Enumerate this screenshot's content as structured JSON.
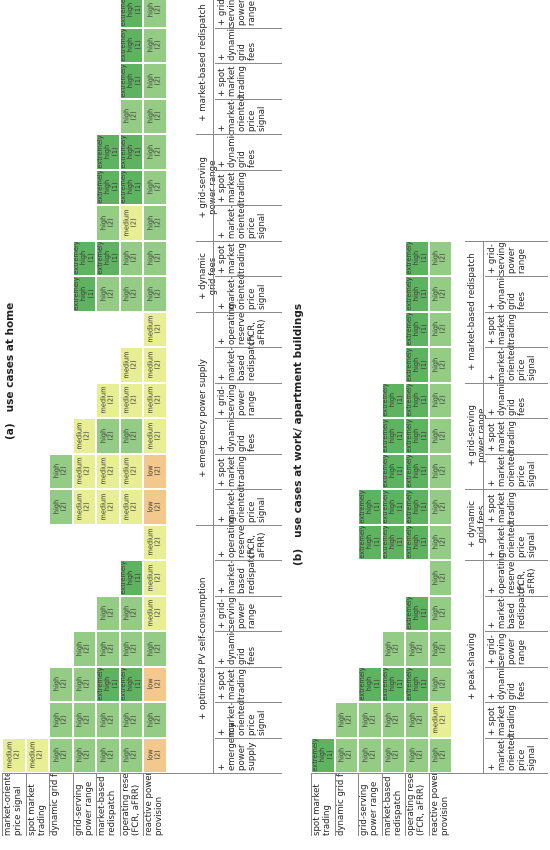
{
  "colors": {
    "extremely_high": "#5db35f",
    "high": "#94cc85",
    "medium": "#e7ee94",
    "low": "#f2c88c"
  },
  "panel_a": {
    "title": "(a)   use cases at home",
    "row_labels": [
      "market-oriented\nprice signal",
      "spot market\ntrading",
      "dynamic grid fees",
      "grid-serving\npower range",
      "market-based\nredispatch",
      "operating reserve\n(FCR, aFRR)",
      "reactive power\nprovision"
    ],
    "groups": [
      {
        "name": "+ optimized PV self-consumption",
        "columns": [
          {
            "label": "+ emergency\npower\nsupply",
            "cells": [
              "medium (2)",
              "medium (2)",
              "high (2)",
              "high (2)",
              "high (2)",
              "high (2)",
              "low (2)"
            ]
          },
          {
            "label": "+ market-\noriented\nprice signal",
            "cells": [
              "",
              "",
              "high (2)",
              "high (2)",
              "high (2)",
              "high (2)",
              "high (2)"
            ]
          },
          {
            "label": "+ spot market\ntrading",
            "cells": [
              "",
              "",
              "high (2)",
              "high (2)",
              "extremely high (1)",
              "extremely high (1)",
              "low (2)"
            ]
          },
          {
            "label": "+ dynamic\ngrid fees",
            "cells": [
              "",
              "",
              "",
              "high (2)",
              "high (2)",
              "high (2)",
              "high (2)"
            ]
          },
          {
            "label": "+ grid-serving\npower range",
            "cells": [
              "",
              "",
              "",
              "",
              "high (2)",
              "high (2)",
              "medium (2)"
            ]
          },
          {
            "label": "+ market-\nbased\nredispatch",
            "cells": [
              "",
              "",
              "",
              "",
              "",
              "extremely high (1)",
              "medium (2)"
            ]
          },
          {
            "label": "+ operating\nreserve\n(FCR, aFRR)",
            "cells": [
              "",
              "",
              "",
              "",
              "",
              "",
              "medium (2)"
            ]
          }
        ]
      },
      {
        "name": "+ emergency power supply",
        "columns": [
          {
            "label": "+ market-\noriented\nprice signal",
            "cells": [
              "",
              "",
              "high (2)",
              "medium (2)",
              "medium (2)",
              "medium (2)",
              "low (2)"
            ]
          },
          {
            "label": "+ spot market\ntrading",
            "cells": [
              "",
              "",
              "high (2)",
              "medium (2)",
              "medium (2)",
              "medium (2)",
              "low (2)"
            ]
          },
          {
            "label": "+ dynamic\ngrid fees",
            "cells": [
              "",
              "",
              "",
              "medium (2)",
              "high (2)",
              "high (2)",
              "medium (2)"
            ]
          },
          {
            "label": "+ grid-serving\npower range",
            "cells": [
              "",
              "",
              "",
              "",
              "medium (2)",
              "medium (2)",
              "medium (2)"
            ]
          },
          {
            "label": "+ market-\nbased\nredispatch",
            "cells": [
              "",
              "",
              "",
              "",
              "",
              "medium (2)",
              "medium (2)"
            ]
          },
          {
            "label": "+ operating\nreserve\n(FCR, aFRR)",
            "cells": [
              "",
              "",
              "",
              "",
              "",
              "",
              "medium (2)"
            ]
          }
        ]
      },
      {
        "name": "+ dynamic\ngrid fees",
        "columns": [
          {
            "label": "+ market-\noriented\nprice signal",
            "cells": [
              "",
              "",
              "",
              "extremely high (1)",
              "high (2)",
              "high (2)",
              "high (2)"
            ]
          },
          {
            "label": "+ spot market\ntrading",
            "cells": [
              "",
              "",
              "",
              "extremely high (1)",
              "extremely high (1)",
              "high (2)",
              "high (2)"
            ]
          }
        ]
      },
      {
        "name": "+ grid-serving\npower range",
        "columns": [
          {
            "label": "+ market-\noriented\nprice signal",
            "cells": [
              "",
              "",
              "",
              "",
              "high (2)",
              "medium (2)",
              "high (2)"
            ]
          },
          {
            "label": "+ spot market\ntrading",
            "cells": [
              "",
              "",
              "",
              "",
              "extremely high (1)",
              "extremely high (1)",
              "high (2)"
            ]
          },
          {
            "label": "+ dynamic\ngrid fees",
            "cells": [
              "",
              "",
              "",
              "",
              "extremely high (1)",
              "extremely high (1)",
              "high (2)"
            ]
          }
        ]
      },
      {
        "name": "+ market-based redispatch",
        "columns": [
          {
            "label": "+ market-\noriented\nprice signal",
            "cells": [
              "",
              "",
              "",
              "",
              "",
              "high (2)",
              "high (2)"
            ]
          },
          {
            "label": "+ spot market\ntrading",
            "cells": [
              "",
              "",
              "",
              "",
              "",
              "extremely high (1)",
              "high (2)"
            ]
          },
          {
            "label": "+ dynamic\ngrid fees",
            "cells": [
              "",
              "",
              "",
              "",
              "",
              "extremely high (1)",
              "high (2)"
            ]
          },
          {
            "label": "+ grid-serving\npower range",
            "cells": [
              "",
              "",
              "",
              "",
              "",
              "extremely high (1)",
              "high (2)"
            ]
          }
        ]
      }
    ]
  },
  "panel_b": {
    "title": "(b)   use cases at work/ apartment buildings",
    "row_labels": [
      "spot market\ntrading",
      "dynamic grid fees",
      "grid-serving\npower range",
      "market-based\nredispatch",
      "operating reserve\n(FCR, aFRR)",
      "reactive power\nprovision"
    ],
    "groups": [
      {
        "name": "+ peak shaving",
        "columns": [
          {
            "label": "+ market-\noriented\nprice signal",
            "cells": [
              "extremely high (1)",
              "high (2)",
              "high (2)",
              "high (2)",
              "high (2)",
              "high (2)"
            ]
          },
          {
            "label": "+ spot market\ntrading",
            "cells": [
              "",
              "high (2)",
              "high (2)",
              "high (2)",
              "high (2)",
              "medium (2)"
            ]
          },
          {
            "label": "+ dynamic\ngrid fees",
            "cells": [
              "",
              "",
              "extremely high (1)",
              "extremely high (1)",
              "extremely high (1)",
              "high (2)"
            ]
          },
          {
            "label": "+ grid-serving\npower range",
            "cells": [
              "",
              "",
              "",
              "high (2)",
              "high (2)",
              "high (2)"
            ]
          },
          {
            "label": "+ market-\nbased\nredispatch",
            "cells": [
              "",
              "",
              "",
              "",
              "extremely high (1)",
              "high (2)"
            ]
          },
          {
            "label": "+ operating\nreserve\n(FCR, aFRR)",
            "cells": [
              "",
              "",
              "",
              "",
              "",
              "high (2)"
            ]
          }
        ]
      },
      {
        "name": "+ dynamic\ngrid fees",
        "columns": [
          {
            "label": "+ market-\noriented\nprice signal",
            "cells": [
              "",
              "",
              "extremely high (1)",
              "extremely high (1)",
              "extremely high (1)",
              "high (2)"
            ]
          },
          {
            "label": "+ spot market\ntrading",
            "cells": [
              "",
              "",
              "extremely high (1)",
              "extremely high (1)",
              "extremely high (1)",
              "high (2)"
            ]
          }
        ]
      },
      {
        "name": "+ grid-serving\npower range",
        "columns": [
          {
            "label": "+ market-\noriented\nprice signal",
            "cells": [
              "",
              "",
              "",
              "extremely high (1)",
              "extremely high (1)",
              "high (2)"
            ]
          },
          {
            "label": "+ spot market\ntrading",
            "cells": [
              "",
              "",
              "",
              "extremely high (1)",
              "extremely high (1)",
              "high (2)"
            ]
          },
          {
            "label": "+ dynamic\ngrid fees",
            "cells": [
              "",
              "",
              "",
              "extremely high (1)",
              "extremely high (1)",
              "high (2)"
            ]
          }
        ]
      },
      {
        "name": "+ market-based redispatch",
        "columns": [
          {
            "label": "+ market-\noriented\nprice signal",
            "cells": [
              "",
              "",
              "",
              "",
              "extremely high (1)",
              "high (2)"
            ]
          },
          {
            "label": "+ spot market\ntrading",
            "cells": [
              "",
              "",
              "",
              "",
              "extremely high (1)",
              "high (2)"
            ]
          },
          {
            "label": "+ dynamic\ngrid fees",
            "cells": [
              "",
              "",
              "",
              "",
              "extremely high (1)",
              "high (2)"
            ]
          },
          {
            "label": "+ grid-serving\npower range",
            "cells": [
              "",
              "",
              "",
              "",
              "extremely high (1)",
              "high (2)"
            ]
          }
        ]
      }
    ]
  }
}
